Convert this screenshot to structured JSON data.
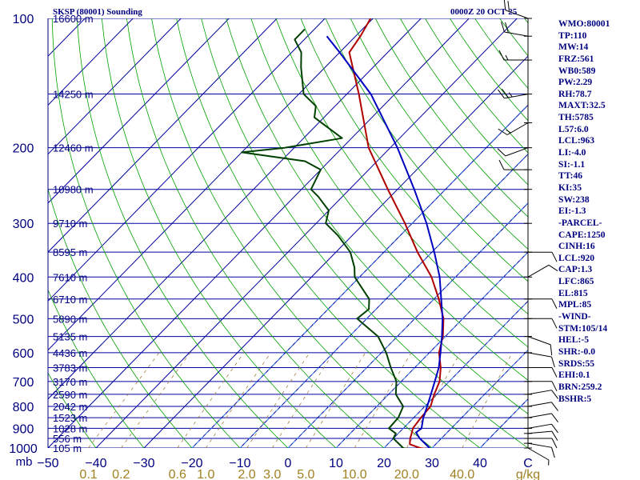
{
  "header": {
    "title": "SKSP (80001) Sounding",
    "valid_time": "0000Z 20 OCT 25"
  },
  "indices": [
    "WMO:80001",
    "TP:110",
    "MW:14",
    "FRZ:561",
    "WB0:589",
    "PW:2.29",
    "RH:78.7",
    "MAXT:32.5",
    "TH:5785",
    "L57:6.0",
    "LCL:963",
    "LI:-4.0",
    "SI:-1.1",
    "TT:46",
    "KI:35",
    "SW:238",
    "EI:-1.3",
    "-PARCEL-",
    "CAPE:1250",
    "CINH:16",
    "LCL:920",
    "CAP:1.3",
    "LFC:865",
    "EL:815",
    "MPL:85",
    "-WIND-",
    "STM:105/14",
    "HEL:-5",
    "SHR:-0.0",
    "SRDS:55",
    "EHI:0.1",
    "BRN:259.2",
    "BSHR:5"
  ],
  "chart_data": {
    "type": "line",
    "subtype": "skew-t log-p sounding",
    "title": "SKSP (80001) Sounding",
    "pressure_axis_label": "mb",
    "temperature_axis_unit": "C",
    "mixing_ratio_unit": "g/kg",
    "plim_hpa": [
      100,
      1000
    ],
    "tlim_c": [
      -50,
      50
    ],
    "pressure_ticks": [
      100,
      200,
      300,
      400,
      500,
      600,
      700,
      800,
      900,
      1000
    ],
    "temperature_ticks": [
      -50,
      -40,
      -30,
      -20,
      -10,
      0,
      10,
      20,
      30,
      40
    ],
    "mixing_ratio_ticks": [
      "0.1",
      "0.2",
      "0.6",
      "1.0",
      "2.0",
      "3.0",
      "5.0",
      "10.0",
      "20.0",
      "40.0"
    ],
    "height_levels": [
      {
        "p": 100,
        "label": "16600 m"
      },
      {
        "p": 150,
        "label": "14250 m"
      },
      {
        "p": 200,
        "label": "12460 m"
      },
      {
        "p": 250,
        "label": "10980 m"
      },
      {
        "p": 300,
        "label": "9710 m"
      },
      {
        "p": 350,
        "label": "8595 m"
      },
      {
        "p": 400,
        "label": "7610 m"
      },
      {
        "p": 450,
        "label": "6710 m"
      },
      {
        "p": 500,
        "label": "5890 m"
      },
      {
        "p": 550,
        "label": "5135 m"
      },
      {
        "p": 600,
        "label": "4436 m"
      },
      {
        "p": 650,
        "label": "3783 m"
      },
      {
        "p": 700,
        "label": "3170 m"
      },
      {
        "p": 750,
        "label": "2590 m"
      },
      {
        "p": 800,
        "label": "2042 m"
      },
      {
        "p": 850,
        "label": "1523 m"
      },
      {
        "p": 900,
        "label": "1028 m"
      },
      {
        "p": 950,
        "label": "556 m"
      },
      {
        "p": 1000,
        "label": "105 m"
      }
    ],
    "series": [
      {
        "name": "Temperature",
        "color": "#b00000",
        "points": [
          [
            1006,
            29.5
          ],
          [
            1000,
            27.5
          ],
          [
            980,
            24.6
          ],
          [
            950,
            23.5
          ],
          [
            925,
            22.8
          ],
          [
            900,
            22.0
          ],
          [
            850,
            21.5
          ],
          [
            800,
            21.2
          ],
          [
            750,
            19.5
          ],
          [
            700,
            18.0
          ],
          [
            650,
            15.4
          ],
          [
            600,
            12.0
          ],
          [
            550,
            9.5
          ],
          [
            500,
            6.0
          ],
          [
            450,
            1.0
          ],
          [
            400,
            -5.0
          ],
          [
            350,
            -13.0
          ],
          [
            300,
            -21.5
          ],
          [
            250,
            -32.0
          ],
          [
            200,
            -44.5
          ],
          [
            150,
            -57.5
          ],
          [
            120,
            -68.0
          ],
          [
            110,
            -69.0
          ],
          [
            100,
            -70.5
          ]
        ]
      },
      {
        "name": "Dewpoint",
        "color": "#004000",
        "points": [
          [
            1004,
            24.8
          ],
          [
            1000,
            24.0
          ],
          [
            950,
            20.0
          ],
          [
            925,
            19.5
          ],
          [
            900,
            17.0
          ],
          [
            850,
            16.8
          ],
          [
            800,
            15.5
          ],
          [
            750,
            11.5
          ],
          [
            700,
            9.0
          ],
          [
            650,
            5.0
          ],
          [
            600,
            1.0
          ],
          [
            550,
            -4.0
          ],
          [
            500,
            -12.0
          ],
          [
            475,
            -11.5
          ],
          [
            450,
            -13.5
          ],
          [
            400,
            -21.0
          ],
          [
            380,
            -23.0
          ],
          [
            350,
            -27.0
          ],
          [
            320,
            -33.0
          ],
          [
            300,
            -38.0
          ],
          [
            280,
            -40.0
          ],
          [
            260,
            -45.0
          ],
          [
            250,
            -48.0
          ],
          [
            225,
            -50.0
          ],
          [
            215,
            -55.0
          ],
          [
            205,
            -70.0
          ],
          [
            200,
            -62.0
          ],
          [
            190,
            -52.0
          ],
          [
            170,
            -62.0
          ],
          [
            160,
            -64.0
          ],
          [
            150,
            -69.0
          ],
          [
            130,
            -75.0
          ],
          [
            120,
            -78.0
          ],
          [
            112,
            -82.0
          ],
          [
            106,
            -82.0
          ]
        ]
      },
      {
        "name": "Parcel",
        "color": "#0000c0",
        "points": [
          [
            1000,
            29.5
          ],
          [
            950,
            25.5
          ],
          [
            920,
            23.5
          ],
          [
            900,
            23.8
          ],
          [
            850,
            22.0
          ],
          [
            800,
            20.5
          ],
          [
            750,
            18.8
          ],
          [
            700,
            17.0
          ],
          [
            650,
            15.0
          ],
          [
            600,
            12.3
          ],
          [
            550,
            9.3
          ],
          [
            500,
            5.8
          ],
          [
            450,
            1.5
          ],
          [
            400,
            -3.3
          ],
          [
            350,
            -9.5
          ],
          [
            300,
            -17.0
          ],
          [
            250,
            -26.5
          ],
          [
            200,
            -38.5
          ],
          [
            150,
            -55.0
          ],
          [
            120,
            -70.0
          ],
          [
            110,
            -76.0
          ]
        ]
      }
    ],
    "wind_profile": [
      [
        1000,
        120,
        5
      ],
      [
        975,
        100,
        10
      ],
      [
        950,
        90,
        10
      ],
      [
        925,
        85,
        10
      ],
      [
        900,
        80,
        10
      ],
      [
        850,
        80,
        10
      ],
      [
        800,
        80,
        10
      ],
      [
        750,
        80,
        10
      ],
      [
        700,
        90,
        10
      ],
      [
        650,
        90,
        10
      ],
      [
        600,
        100,
        10
      ],
      [
        550,
        110,
        10
      ],
      [
        500,
        90,
        10
      ],
      [
        450,
        90,
        10
      ],
      [
        400,
        60,
        10
      ],
      [
        350,
        90,
        10
      ],
      [
        300,
        0,
        0
      ],
      [
        250,
        0,
        0
      ],
      [
        225,
        270,
        10
      ],
      [
        200,
        250,
        10
      ],
      [
        175,
        240,
        15
      ],
      [
        150,
        260,
        25
      ],
      [
        125,
        270,
        15
      ],
      [
        110,
        280,
        20
      ],
      [
        100,
        290,
        20
      ]
    ]
  }
}
